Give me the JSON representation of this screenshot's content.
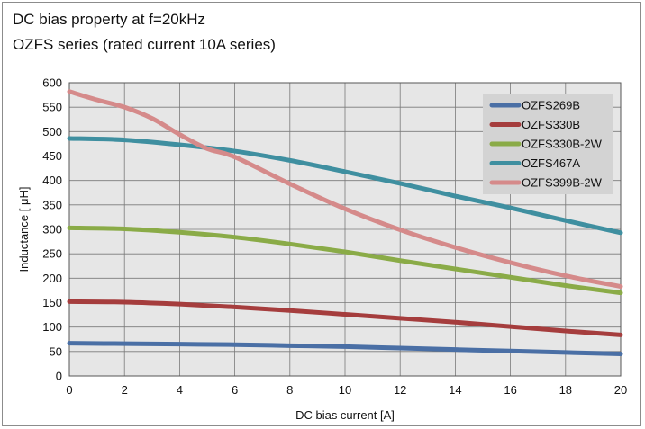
{
  "title": "DC bias property at f=20kHz",
  "subtitle": "OZFS series (rated current 10A series)",
  "chart_data": {
    "type": "line",
    "title": "DC bias property at f=20kHz",
    "subtitle": "OZFS series (rated current 10A series)",
    "xlabel": "DC bias current [A]",
    "ylabel": "Inductance [ μH]",
    "xlim": [
      0,
      20
    ],
    "ylim": [
      0,
      600
    ],
    "xticks": [
      0,
      2,
      4,
      6,
      8,
      10,
      12,
      14,
      16,
      18,
      20
    ],
    "yticks": [
      0,
      50,
      100,
      150,
      200,
      250,
      300,
      350,
      400,
      450,
      500,
      550,
      600
    ],
    "grid": true,
    "legend_position": "top-right",
    "series": [
      {
        "name": "OZFS269B",
        "color": "#4a6fa5",
        "x": [
          0,
          2,
          4,
          6,
          8,
          10,
          12,
          14,
          16,
          18,
          20
        ],
        "y": [
          67,
          66,
          65,
          64,
          62,
          60,
          57,
          54,
          51,
          48,
          45
        ]
      },
      {
        "name": "OZFS330B",
        "color": "#a53d3d",
        "x": [
          0,
          2,
          4,
          6,
          8,
          10,
          12,
          14,
          16,
          18,
          20
        ],
        "y": [
          152,
          151,
          147,
          141,
          134,
          126,
          118,
          110,
          101,
          92,
          84
        ]
      },
      {
        "name": "OZFS330B-2W",
        "color": "#8aab47",
        "x": [
          0,
          2,
          4,
          6,
          8,
          10,
          12,
          14,
          16,
          18,
          20
        ],
        "y": [
          303,
          301,
          294,
          284,
          270,
          254,
          236,
          219,
          202,
          185,
          170
        ]
      },
      {
        "name": "OZFS467A",
        "color": "#3f8fa0",
        "x": [
          0,
          2,
          4,
          6,
          8,
          10,
          12,
          14,
          16,
          18,
          20
        ],
        "y": [
          486,
          483,
          473,
          460,
          441,
          418,
          394,
          368,
          344,
          318,
          293
        ]
      },
      {
        "name": "OZFS399B-2W",
        "color": "#d58a8a",
        "x": [
          0,
          1,
          2,
          3,
          4,
          5,
          6,
          8,
          10,
          12,
          14,
          16,
          18,
          20
        ],
        "y": [
          582,
          565,
          550,
          527,
          494,
          465,
          448,
          393,
          342,
          299,
          263,
          232,
          205,
          183
        ]
      }
    ]
  }
}
